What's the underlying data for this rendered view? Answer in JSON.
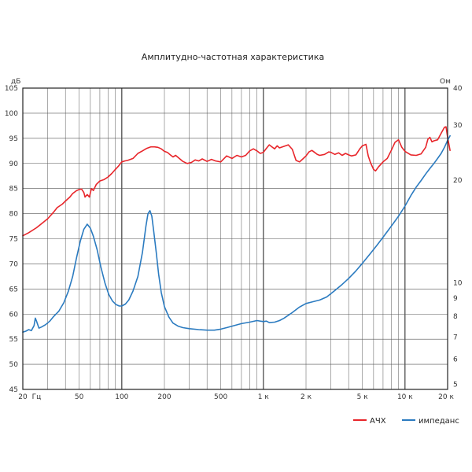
{
  "chart_data": {
    "type": "line",
    "title": "Амплитудно-частотная характеристика",
    "x_scale": "log",
    "xlim": [
      20,
      20000
    ],
    "ylim_left": [
      45,
      105
    ],
    "left_unit": "дБ",
    "right_unit": "Ом",
    "x_tick_labels": [
      {
        "value": 20,
        "label": "20"
      },
      {
        "value": 25,
        "label": "Гц"
      },
      {
        "value": 50,
        "label": "50"
      },
      {
        "value": 100,
        "label": "100"
      },
      {
        "value": 200,
        "label": "200"
      },
      {
        "value": 500,
        "label": "500"
      },
      {
        "value": 1000,
        "label": "1 к"
      },
      {
        "value": 2000,
        "label": "2 к"
      },
      {
        "value": 5000,
        "label": "5 к"
      },
      {
        "value": 10000,
        "label": "10 к"
      },
      {
        "value": 20000,
        "label": "20 к"
      }
    ],
    "left_ticks": [
      45,
      50,
      55,
      60,
      65,
      70,
      75,
      80,
      85,
      90,
      95,
      100,
      105
    ],
    "right_ticks": [
      {
        "label": "40",
        "at_db": 105
      },
      {
        "label": "30",
        "at_db": 97.6
      },
      {
        "label": "20",
        "at_db": 86.7
      },
      {
        "label": "10",
        "at_db": 66.2
      },
      {
        "label": "9",
        "at_db": 63.2
      },
      {
        "label": "8",
        "at_db": 59.6
      },
      {
        "label": "7",
        "at_db": 55.4
      },
      {
        "label": "6",
        "at_db": 51.0
      },
      {
        "label": "5",
        "at_db": 46.0
      }
    ],
    "grid": true,
    "legend_position": "bottom-right",
    "series": [
      {
        "name": "АЧХ",
        "color": "#e8252a",
        "points": [
          [
            20,
            75.6
          ],
          [
            22,
            76.2
          ],
          [
            25,
            77.2
          ],
          [
            28,
            78.3
          ],
          [
            30,
            79
          ],
          [
            33,
            80.3
          ],
          [
            35,
            81.2
          ],
          [
            38,
            81.9
          ],
          [
            40,
            82.5
          ],
          [
            43,
            83.3
          ],
          [
            45,
            84
          ],
          [
            48,
            84.6
          ],
          [
            50,
            84.8
          ],
          [
            52,
            84.9
          ],
          [
            54,
            84.2
          ],
          [
            55,
            83.3
          ],
          [
            57,
            83.8
          ],
          [
            59,
            83.3
          ],
          [
            61,
            85
          ],
          [
            63,
            84.6
          ],
          [
            66,
            85.8
          ],
          [
            70,
            86.5
          ],
          [
            75,
            86.8
          ],
          [
            80,
            87.3
          ],
          [
            85,
            88
          ],
          [
            90,
            88.8
          ],
          [
            95,
            89.5
          ],
          [
            100,
            90.3
          ],
          [
            105,
            90.5
          ],
          [
            110,
            90.6
          ],
          [
            120,
            91
          ],
          [
            130,
            92
          ],
          [
            140,
            92.5
          ],
          [
            150,
            93
          ],
          [
            160,
            93.3
          ],
          [
            170,
            93.3
          ],
          [
            180,
            93.2
          ],
          [
            190,
            92.9
          ],
          [
            200,
            92.4
          ],
          [
            210,
            92.2
          ],
          [
            220,
            91.7
          ],
          [
            230,
            91.3
          ],
          [
            240,
            91.6
          ],
          [
            250,
            91.2
          ],
          [
            270,
            90.4
          ],
          [
            290,
            90
          ],
          [
            310,
            90.2
          ],
          [
            330,
            90.7
          ],
          [
            350,
            90.5
          ],
          [
            370,
            90.9
          ],
          [
            400,
            90.4
          ],
          [
            430,
            90.8
          ],
          [
            460,
            90.5
          ],
          [
            500,
            90.3
          ],
          [
            550,
            91.5
          ],
          [
            600,
            91
          ],
          [
            650,
            91.6
          ],
          [
            700,
            91.3
          ],
          [
            750,
            91.6
          ],
          [
            800,
            92.5
          ],
          [
            850,
            92.9
          ],
          [
            900,
            92.5
          ],
          [
            950,
            92
          ],
          [
            1000,
            92.2
          ],
          [
            1050,
            93
          ],
          [
            1100,
            93.7
          ],
          [
            1150,
            93.3
          ],
          [
            1200,
            92.9
          ],
          [
            1250,
            93.5
          ],
          [
            1300,
            93.1
          ],
          [
            1400,
            93.4
          ],
          [
            1500,
            93.7
          ],
          [
            1600,
            92.8
          ],
          [
            1700,
            90.6
          ],
          [
            1800,
            90.3
          ],
          [
            1900,
            90.9
          ],
          [
            2000,
            91.5
          ],
          [
            2100,
            92.3
          ],
          [
            2200,
            92.6
          ],
          [
            2300,
            92.2
          ],
          [
            2400,
            91.8
          ],
          [
            2500,
            91.6
          ],
          [
            2700,
            91.8
          ],
          [
            2900,
            92.3
          ],
          [
            3000,
            92.2
          ],
          [
            3200,
            91.8
          ],
          [
            3400,
            92.1
          ],
          [
            3600,
            91.6
          ],
          [
            3800,
            92
          ],
          [
            4000,
            91.7
          ],
          [
            4200,
            91.5
          ],
          [
            4500,
            91.7
          ],
          [
            4800,
            92.9
          ],
          [
            5000,
            93.5
          ],
          [
            5300,
            93.8
          ],
          [
            5500,
            91.5
          ],
          [
            5700,
            90.2
          ],
          [
            6000,
            88.8
          ],
          [
            6200,
            88.5
          ],
          [
            6500,
            89.3
          ],
          [
            7000,
            90.3
          ],
          [
            7500,
            91
          ],
          [
            8000,
            92.6
          ],
          [
            8500,
            94.2
          ],
          [
            9000,
            94.7
          ],
          [
            9500,
            93.2
          ],
          [
            10000,
            92.4
          ],
          [
            11000,
            91.7
          ],
          [
            12000,
            91.6
          ],
          [
            13000,
            91.9
          ],
          [
            14000,
            93.2
          ],
          [
            14500,
            94.8
          ],
          [
            15000,
            95.2
          ],
          [
            15500,
            94.3
          ],
          [
            16000,
            94.5
          ],
          [
            17000,
            94.7
          ],
          [
            18000,
            96
          ],
          [
            19000,
            97.2
          ],
          [
            19500,
            97.3
          ],
          [
            20000,
            95.2
          ],
          [
            20800,
            92.6
          ]
        ]
      },
      {
        "name": "импеданс",
        "color": "#2b7bc0",
        "points": [
          [
            20,
            56.4
          ],
          [
            21,
            56.6
          ],
          [
            22,
            56.9
          ],
          [
            23,
            56.7
          ],
          [
            24,
            57.7
          ],
          [
            24.5,
            59.2
          ],
          [
            25,
            58.6
          ],
          [
            26,
            57.2
          ],
          [
            27,
            57.4
          ],
          [
            29,
            57.9
          ],
          [
            31,
            58.6
          ],
          [
            33,
            59.5
          ],
          [
            36,
            60.6
          ],
          [
            39,
            62.3
          ],
          [
            42,
            64.6
          ],
          [
            45,
            67.5
          ],
          [
            48,
            71.3
          ],
          [
            51,
            74.6
          ],
          [
            54,
            76.9
          ],
          [
            57,
            77.9
          ],
          [
            60,
            77.1
          ],
          [
            63,
            75.5
          ],
          [
            67,
            72.8
          ],
          [
            71,
            69.5
          ],
          [
            76,
            66.2
          ],
          [
            81,
            63.9
          ],
          [
            86,
            62.6
          ],
          [
            91,
            61.9
          ],
          [
            96,
            61.6
          ],
          [
            100,
            61.6
          ],
          [
            106,
            62
          ],
          [
            112,
            62.8
          ],
          [
            120,
            64.6
          ],
          [
            130,
            67.5
          ],
          [
            140,
            72.3
          ],
          [
            148,
            77.5
          ],
          [
            153,
            80
          ],
          [
            158,
            80.6
          ],
          [
            163,
            79.5
          ],
          [
            168,
            76.5
          ],
          [
            175,
            72.3
          ],
          [
            182,
            68
          ],
          [
            190,
            64.3
          ],
          [
            200,
            61.5
          ],
          [
            215,
            59.4
          ],
          [
            230,
            58.2
          ],
          [
            250,
            57.6
          ],
          [
            270,
            57.3
          ],
          [
            300,
            57.1
          ],
          [
            350,
            56.9
          ],
          [
            400,
            56.8
          ],
          [
            450,
            56.8
          ],
          [
            500,
            57
          ],
          [
            550,
            57.3
          ],
          [
            600,
            57.6
          ],
          [
            700,
            58.1
          ],
          [
            800,
            58.4
          ],
          [
            900,
            58.7
          ],
          [
            1000,
            58.5
          ],
          [
            1050,
            58.6
          ],
          [
            1100,
            58.3
          ],
          [
            1200,
            58.4
          ],
          [
            1300,
            58.7
          ],
          [
            1400,
            59.2
          ],
          [
            1600,
            60.3
          ],
          [
            1800,
            61.4
          ],
          [
            2000,
            62.1
          ],
          [
            2200,
            62.4
          ],
          [
            2500,
            62.8
          ],
          [
            2800,
            63.4
          ],
          [
            3200,
            64.7
          ],
          [
            3600,
            65.9
          ],
          [
            4000,
            67.1
          ],
          [
            4500,
            68.6
          ],
          [
            5000,
            70.1
          ],
          [
            5600,
            71.8
          ],
          [
            6300,
            73.6
          ],
          [
            7000,
            75.3
          ],
          [
            8000,
            77.5
          ],
          [
            9000,
            79.5
          ],
          [
            10000,
            81.5
          ],
          [
            11000,
            83.6
          ],
          [
            12000,
            85.3
          ],
          [
            13000,
            86.6
          ],
          [
            14000,
            87.9
          ],
          [
            15000,
            89
          ],
          [
            16000,
            90
          ],
          [
            17000,
            91
          ],
          [
            18000,
            92
          ],
          [
            19000,
            93.2
          ],
          [
            20000,
            94.6
          ],
          [
            20800,
            95.5
          ]
        ]
      }
    ]
  }
}
